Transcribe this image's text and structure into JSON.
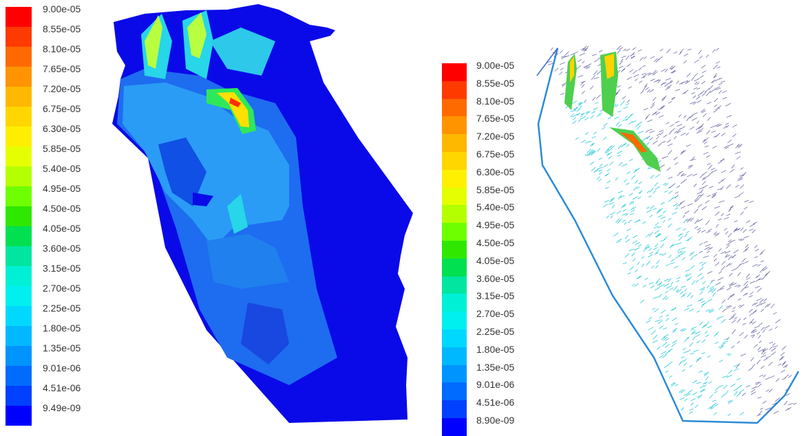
{
  "left_panel": {
    "legend_labels": [
      "9.00e-05",
      "8.55e-05",
      "8.10e-05",
      "7.65e-05",
      "7.20e-05",
      "6.75e-05",
      "6.30e-05",
      "5.85e-05",
      "5.40e-05",
      "4.95e-05",
      "4.50e-05",
      "4.05e-05",
      "3.60e-05",
      "3.15e-05",
      "2.70e-05",
      "2.25e-05",
      "1.80e-05",
      "1.35e-05",
      "9.01e-06",
      "4.51e-06",
      "9.49e-09"
    ]
  },
  "right_panel": {
    "legend_labels": [
      "9.00e-05",
      "8.55e-05",
      "8.10e-05",
      "7.65e-05",
      "7.20e-05",
      "6.75e-05",
      "6.30e-05",
      "5.85e-05",
      "5.40e-05",
      "4.95e-05",
      "4.50e-05",
      "4.05e-05",
      "3.60e-05",
      "3.15e-05",
      "2.70e-05",
      "2.25e-05",
      "1.80e-05",
      "1.35e-05",
      "9.01e-06",
      "4.51e-06",
      "8.90e-09"
    ]
  },
  "colormap": [
    "#ff0000",
    "#ff3a00",
    "#ff6a00",
    "#ff9400",
    "#ffb800",
    "#ffd600",
    "#ffef00",
    "#e6ff00",
    "#b4ff00",
    "#6eff00",
    "#2ee800",
    "#00e050",
    "#00e6a0",
    "#00f0d6",
    "#00f0f0",
    "#00d8ff",
    "#00b8ff",
    "#0094ff",
    "#006cff",
    "#0040ff",
    "#0000ff"
  ]
}
